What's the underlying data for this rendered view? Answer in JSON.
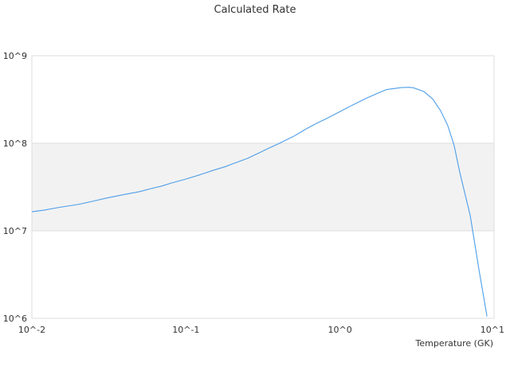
{
  "chart_data": {
    "type": "line",
    "title": "Calculated Rate",
    "xlabel": "Temperature (GK)",
    "ylabel": "",
    "x_scale": "log",
    "y_scale": "log",
    "xlim": [
      0.01,
      10
    ],
    "ylim": [
      1000000,
      1000000000
    ],
    "x_ticks": [
      0.01,
      0.1,
      1,
      10
    ],
    "x_tick_labels": [
      "10^-2",
      "10^-1",
      "10^0",
      "10^1"
    ],
    "y_ticks": [
      1000000,
      10000000,
      100000000,
      1000000000
    ],
    "y_tick_labels": [
      "10^6",
      "10^7",
      "10^8",
      "10^9"
    ],
    "band_shading": "alternating decades",
    "grid": true,
    "colors": {
      "series": "#4e9ee8",
      "band": "#f2f2f2",
      "grid": "#dddddd",
      "text": "#333333"
    },
    "series": [
      {
        "x": [
          0.01,
          0.012,
          0.015,
          0.02,
          0.025,
          0.03,
          0.04,
          0.05,
          0.06,
          0.07,
          0.08,
          0.1,
          0.12,
          0.15,
          0.18,
          0.2,
          0.25,
          0.3,
          0.35,
          0.4,
          0.5,
          0.6,
          0.7,
          0.8,
          1.0,
          1.2,
          1.5,
          1.8,
          2.0,
          2.5,
          2.8,
          3.0,
          3.5,
          4.0,
          4.5,
          5.0,
          5.5,
          6.0,
          7.0,
          8.0,
          9.0
        ],
        "values": [
          16500000,
          17200000,
          18500000,
          20000000,
          21800000,
          23500000,
          26000000,
          28000000,
          30500000,
          32500000,
          35000000,
          39000000,
          43000000,
          49000000,
          54000000,
          58000000,
          67000000,
          78000000,
          89000000,
          99000000,
          120000000,
          145000000,
          168000000,
          188000000,
          230000000,
          272000000,
          330000000,
          380000000,
          410000000,
          432000000,
          436000000,
          430000000,
          390000000,
          320000000,
          235000000,
          160000000,
          95000000,
          46000000,
          15000000,
          3500000,
          1050000
        ]
      }
    ]
  }
}
